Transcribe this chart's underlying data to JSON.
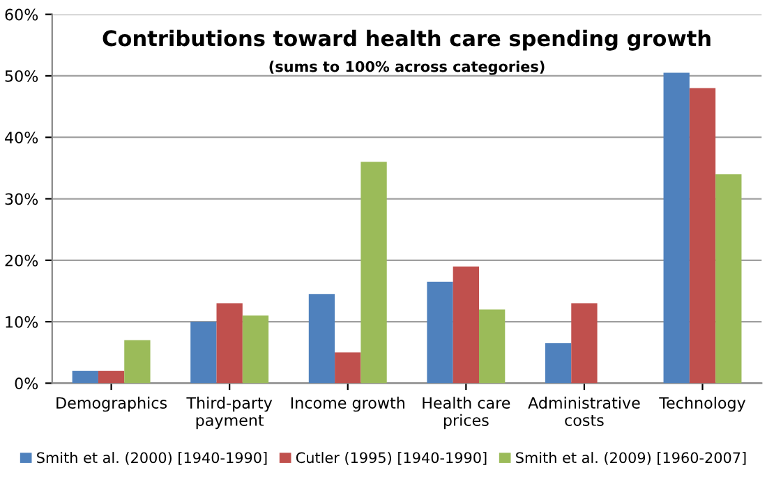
{
  "chart_data": {
    "type": "bar",
    "title": "Contributions toward health care spending growth",
    "subtitle": "(sums to 100% across categories)",
    "categories": [
      "Demographics",
      "Third-party\npayment",
      "Income growth",
      "Health care\nprices",
      "Administrative\ncosts",
      "Technology"
    ],
    "series": [
      {
        "name": "Smith et al. (2000) [1940-1990]",
        "color": "#4f81bd",
        "values": [
          2,
          10,
          14.5,
          16.5,
          6.5,
          50.5
        ]
      },
      {
        "name": "Cutler (1995) [1940-1990]",
        "color": "#c0504d",
        "values": [
          2,
          13,
          5,
          19,
          13,
          48
        ]
      },
      {
        "name": "Smith et al. (2009) [1960-2007]",
        "color": "#9bbb59",
        "values": [
          7,
          11,
          36,
          12,
          null,
          34
        ]
      }
    ],
    "ylim": [
      0,
      60
    ],
    "yticks": [
      {
        "value": 0,
        "label": "0%"
      },
      {
        "value": 10,
        "label": "10%"
      },
      {
        "value": 20,
        "label": "20%"
      },
      {
        "value": 30,
        "label": "30%"
      },
      {
        "value": 40,
        "label": "40%"
      },
      {
        "value": 50,
        "label": "50%"
      },
      {
        "value": 60,
        "label": "60%"
      }
    ],
    "grid": "y",
    "legend": "bottom"
  }
}
